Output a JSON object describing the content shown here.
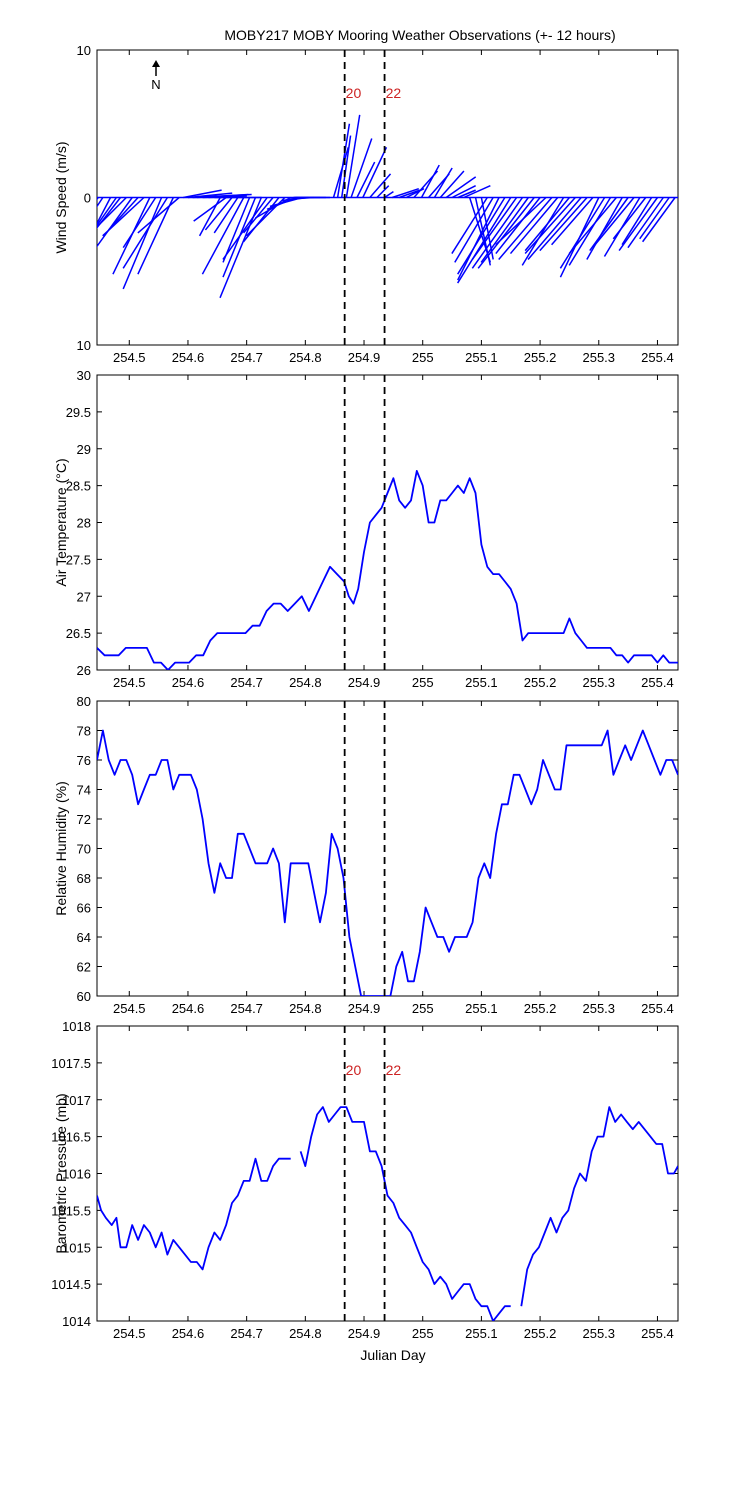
{
  "title": "MOBY217 MOBY Mooring Weather Observations (+- 12 hours)",
  "xlabel": "Julian Day",
  "north_label": "N",
  "x_ticks": [
    "254.5",
    "254.6",
    "254.7",
    "254.8",
    "254.9",
    "255",
    "255.1",
    "255.2",
    "255.3",
    "255.4"
  ],
  "colors": {
    "series": "#0000ff",
    "marker_text": "#cc2222",
    "axis": "#000000"
  },
  "markers": {
    "values": [
      254.867,
      254.935
    ],
    "labels": [
      "20",
      "22"
    ]
  },
  "chart_data": [
    {
      "type": "line",
      "variant": "wind-stick",
      "ylabel": "Wind Speed (m/s)",
      "y_ticks": [
        "10",
        "0",
        "10"
      ],
      "xlim": [
        254.445,
        255.435
      ],
      "ylim": [
        -10,
        10
      ],
      "marker_labels_shown": true,
      "x": [
        254.447,
        254.455,
        254.468,
        254.478,
        254.485,
        254.495,
        254.505,
        254.515,
        254.525,
        254.535,
        254.545,
        254.555,
        254.565,
        254.575,
        254.585,
        254.592,
        254.6,
        254.608,
        254.615,
        254.625,
        254.635,
        254.645,
        254.655,
        254.665,
        254.675,
        254.685,
        254.695,
        254.705,
        254.715,
        254.725,
        254.735,
        254.745,
        254.755,
        254.765,
        254.775,
        254.785,
        254.795,
        254.805,
        254.815,
        254.825,
        254.835,
        254.842,
        254.848,
        254.855,
        254.862,
        254.87,
        254.878,
        254.888,
        254.898,
        254.91,
        254.922,
        254.935,
        254.948,
        254.96,
        254.972,
        254.985,
        254.998,
        255.01,
        255.02,
        255.03,
        255.04,
        255.05,
        255.06,
        255.07,
        255.08,
        255.09,
        255.1,
        255.11,
        255.12,
        255.13,
        255.14,
        255.15,
        255.16,
        255.17,
        255.18,
        255.19,
        255.2,
        255.21,
        255.22,
        255.23,
        255.24,
        255.25,
        255.26,
        255.27,
        255.28,
        255.29,
        255.3,
        255.31,
        255.32,
        255.33,
        255.34,
        255.35,
        255.36,
        255.37,
        255.38,
        255.39,
        255.4,
        255.41,
        255.42,
        255.43
      ],
      "u": [
        2.3,
        2.0,
        2.5,
        3.2,
        2.8,
        2.4,
        2.6,
        2.0,
        2.8,
        2.5,
        2.2,
        2.6,
        3.0,
        2.4,
        2.8,
        -2.6,
        -3.0,
        -4.0,
        -3.5,
        -2.8,
        -2.6,
        -3.2,
        1.4,
        2.2,
        1.8,
        1.6,
        2.8,
        1.8,
        2.2,
        2.8,
        3.0,
        2.0,
        2.4,
        2.6,
        2.4,
        2.0,
        2.2,
        1.8,
        1.6,
        1.8,
        2.0,
        2.4,
        -1.0,
        -0.8,
        -0.6,
        -0.9,
        -1.4,
        -1.2,
        -1.6,
        -1.4,
        -0.8,
        -0.6,
        -1.8,
        -1.4,
        -1.2,
        -1.6,
        -1.2,
        -1.4,
        -1.2,
        -1.6,
        -2.0,
        -1.6,
        -1.2,
        -1.8,
        -1.4,
        -1.0,
        -0.8,
        2.4,
        2.6,
        2.8,
        3.2,
        3.6,
        3.0,
        3.4,
        3.2,
        3.8,
        3.0,
        3.4,
        3.6,
        3.2,
        2.8,
        3.0,
        3.4,
        3.6,
        3.2,
        2.8,
        2.6,
        3.0,
        2.8,
        3.2,
        2.4,
        2.6,
        2.8,
        2.4,
        2.2,
        2.0,
        2.6,
        2.4,
        2.0,
        2.2
      ],
      "v": [
        -3.4,
        -3.0,
        -4.8,
        -4.6,
        -3.6,
        -2.4,
        -3.6,
        -2.2,
        -2.6,
        -5.2,
        -3.4,
        -6.2,
        -4.8,
        -5.2,
        -2.4,
        0.5,
        0.3,
        0.2,
        0.2,
        0.1,
        0.1,
        0.0,
        -2.6,
        -1.6,
        -2.2,
        -2.4,
        -5.2,
        -4.4,
        -5.4,
        -6.8,
        -4.2,
        -2.4,
        -3.0,
        -2.6,
        -1.4,
        -0.8,
        -0.6,
        -0.2,
        -0.1,
        0.0,
        0.0,
        0.0,
        3.4,
        5.0,
        4.2,
        5.6,
        4.0,
        2.4,
        3.4,
        1.6,
        0.8,
        0.4,
        0.6,
        0.5,
        0.6,
        1.8,
        2.2,
        1.6,
        2.0,
        1.8,
        1.4,
        0.8,
        0.5,
        0.8,
        -4.4,
        -4.6,
        -4.2,
        -3.8,
        -4.4,
        -5.6,
        -5.2,
        -5.8,
        -4.2,
        -4.8,
        -4.4,
        -4.8,
        -3.8,
        -3.2,
        -4.2,
        -3.8,
        -4.6,
        -3.6,
        -3.8,
        -4.2,
        -3.6,
        -3.2,
        -5.4,
        -4.8,
        -4.6,
        -3.8,
        -4.2,
        -3.6,
        -3.4,
        -4.0,
        -2.8,
        -3.2,
        -3.6,
        -3.4,
        -2.8,
        -3.0
      ]
    },
    {
      "type": "line",
      "ylabel": "Air Temperature (°C)",
      "y_ticks": [
        "26",
        "26.5",
        "27",
        "27.5",
        "28",
        "28.5",
        "29",
        "29.5",
        "30"
      ],
      "xlim": [
        254.445,
        255.435
      ],
      "ylim": [
        26,
        30
      ],
      "marker_labels_shown": false,
      "x": [
        254.445,
        254.458,
        254.47,
        254.482,
        254.494,
        254.506,
        254.518,
        254.53,
        254.542,
        254.554,
        254.566,
        254.578,
        254.59,
        254.602,
        254.614,
        254.626,
        254.638,
        254.65,
        254.662,
        254.674,
        254.686,
        254.698,
        254.71,
        254.722,
        254.734,
        254.746,
        254.758,
        254.77,
        254.782,
        254.794,
        254.806,
        254.818,
        254.83,
        254.842,
        254.854,
        254.866,
        254.874,
        254.882,
        254.89,
        254.9,
        254.91,
        254.92,
        254.93,
        254.94,
        254.95,
        254.96,
        254.97,
        254.98,
        254.99,
        255.0,
        255.01,
        255.02,
        255.03,
        255.04,
        255.05,
        255.06,
        255.07,
        255.08,
        255.09,
        255.1,
        255.11,
        255.12,
        255.13,
        255.14,
        255.15,
        255.16,
        255.17,
        255.18,
        255.19,
        255.2,
        255.21,
        255.22,
        255.23,
        255.24,
        255.25,
        255.26,
        255.27,
        255.28,
        255.29,
        255.3,
        255.31,
        255.32,
        255.33,
        255.34,
        255.35,
        255.36,
        255.37,
        255.38,
        255.39,
        255.4,
        255.41,
        255.42,
        255.435
      ],
      "y": [
        26.3,
        26.2,
        26.2,
        26.2,
        26.3,
        26.3,
        26.3,
        26.3,
        26.1,
        26.1,
        26.0,
        26.1,
        26.1,
        26.1,
        26.2,
        26.2,
        26.4,
        26.5,
        26.5,
        26.5,
        26.5,
        26.5,
        26.6,
        26.6,
        26.8,
        26.9,
        26.9,
        26.8,
        26.9,
        27.0,
        26.8,
        27.0,
        27.2,
        27.4,
        27.3,
        27.2,
        27.0,
        26.9,
        27.1,
        27.6,
        28.0,
        28.1,
        28.2,
        28.4,
        28.6,
        28.3,
        28.2,
        28.3,
        28.7,
        28.5,
        28.0,
        28.0,
        28.3,
        28.3,
        28.4,
        28.5,
        28.4,
        28.6,
        28.4,
        27.7,
        27.4,
        27.3,
        27.3,
        27.2,
        27.1,
        26.9,
        26.4,
        26.5,
        26.5,
        26.5,
        26.5,
        26.5,
        26.5,
        26.5,
        26.7,
        26.5,
        26.4,
        26.3,
        26.3,
        26.3,
        26.3,
        26.3,
        26.2,
        26.2,
        26.1,
        26.2,
        26.2,
        26.2,
        26.2,
        26.1,
        26.2,
        26.1,
        26.1
      ]
    },
    {
      "type": "line",
      "ylabel": "Relative Humidity (%)",
      "y_ticks": [
        "60",
        "62",
        "64",
        "66",
        "68",
        "70",
        "72",
        "74",
        "76",
        "78",
        "80"
      ],
      "xlim": [
        254.445,
        255.435
      ],
      "ylim": [
        60,
        80
      ],
      "marker_labels_shown": false,
      "x": [
        254.445,
        254.455,
        254.465,
        254.475,
        254.485,
        254.495,
        254.505,
        254.515,
        254.525,
        254.535,
        254.545,
        254.555,
        254.565,
        254.575,
        254.585,
        254.595,
        254.605,
        254.615,
        254.625,
        254.635,
        254.645,
        254.655,
        254.665,
        254.675,
        254.685,
        254.695,
        254.705,
        254.715,
        254.725,
        254.735,
        254.745,
        254.755,
        254.765,
        254.775,
        254.785,
        254.795,
        254.805,
        254.815,
        254.825,
        254.835,
        254.845,
        254.855,
        254.865,
        254.875,
        254.885,
        254.895,
        254.905,
        254.915,
        254.925,
        254.935,
        254.945,
        254.955,
        254.965,
        254.975,
        254.985,
        254.995,
        255.005,
        255.015,
        255.025,
        255.035,
        255.045,
        255.055,
        255.065,
        255.075,
        255.085,
        255.095,
        255.105,
        255.115,
        255.125,
        255.135,
        255.145,
        255.155,
        255.165,
        255.175,
        255.185,
        255.195,
        255.205,
        255.215,
        255.225,
        255.235,
        255.245,
        255.255,
        255.265,
        255.275,
        255.285,
        255.295,
        255.305,
        255.315,
        255.325,
        255.335,
        255.345,
        255.355,
        255.365,
        255.375,
        255.385,
        255.395,
        255.405,
        255.415,
        255.425,
        255.435
      ],
      "y": [
        76,
        78,
        76,
        75,
        76,
        76,
        75,
        73,
        74,
        75,
        75,
        76,
        76,
        74,
        75,
        75,
        75,
        74,
        72,
        69,
        67,
        69,
        68,
        68,
        71,
        71,
        70,
        69,
        69,
        69,
        70,
        69,
        65,
        69,
        69,
        69,
        69,
        67,
        65,
        67,
        71,
        70,
        68,
        64,
        62,
        60,
        60,
        60,
        60,
        60,
        60,
        62,
        63,
        61,
        61,
        63,
        66,
        65,
        64,
        64,
        63,
        64,
        64,
        64,
        65,
        68,
        69,
        68,
        71,
        73,
        73,
        75,
        75,
        74,
        73,
        74,
        76,
        75,
        74,
        74,
        77,
        77,
        77,
        77,
        77,
        77,
        77,
        78,
        75,
        76,
        77,
        76,
        77,
        78,
        77,
        76,
        75,
        76,
        76,
        75
      ],
      "note": "Values at 60 between 254.905 and 254.935 fall below the axis floor; the line leaves the frame there."
    },
    {
      "type": "line",
      "ylabel": "Barometric Pressure (mb)",
      "y_ticks": [
        "1014",
        "1014.5",
        "1015",
        "1015.5",
        "1016",
        "1016.5",
        "1017",
        "1017.5",
        "1018"
      ],
      "xlim": [
        254.445,
        255.435
      ],
      "ylim": [
        1014,
        1018
      ],
      "marker_labels_shown": true,
      "segments": [
        {
          "x": [
            254.445,
            254.452,
            254.46,
            254.47,
            254.478,
            254.485,
            254.495,
            254.505,
            254.515,
            254.525,
            254.535,
            254.545,
            254.555,
            254.565,
            254.575,
            254.585,
            254.595,
            254.605,
            254.615,
            254.625,
            254.635,
            254.645,
            254.655,
            254.665,
            254.675,
            254.685,
            254.695,
            254.705,
            254.715,
            254.725,
            254.735,
            254.745,
            254.755,
            254.765,
            254.775
          ],
          "y": [
            1015.7,
            1015.5,
            1015.4,
            1015.3,
            1015.4,
            1015.0,
            1015.0,
            1015.3,
            1015.1,
            1015.3,
            1015.2,
            1015.0,
            1015.2,
            1014.9,
            1015.1,
            1015.0,
            1014.9,
            1014.8,
            1014.8,
            1014.7,
            1015.0,
            1015.2,
            1015.1,
            1015.3,
            1015.6,
            1015.7,
            1015.9,
            1015.9,
            1016.2,
            1015.9,
            1015.9,
            1016.1,
            1016.2,
            1016.2,
            1016.2
          ]
        },
        {
          "x": [
            254.792,
            254.8,
            254.81,
            254.82,
            254.83,
            254.84,
            254.85,
            254.86,
            254.87,
            254.88,
            254.89,
            254.9,
            254.91,
            254.92,
            254.93,
            254.94,
            254.95,
            254.96,
            254.97,
            254.98,
            254.99,
            255.0,
            255.01,
            255.02,
            255.03,
            255.04,
            255.05,
            255.06,
            255.07,
            255.08,
            255.09,
            255.1,
            255.11,
            255.12,
            255.13,
            255.14,
            255.15
          ],
          "y": [
            1016.3,
            1016.1,
            1016.5,
            1016.8,
            1016.9,
            1016.7,
            1016.8,
            1016.9,
            1016.9,
            1016.7,
            1016.7,
            1016.7,
            1016.3,
            1016.3,
            1016.1,
            1015.7,
            1015.6,
            1015.4,
            1015.3,
            1015.2,
            1015.0,
            1014.8,
            1014.7,
            1014.5,
            1014.6,
            1014.5,
            1014.3,
            1014.4,
            1014.5,
            1014.5,
            1014.3,
            1014.2,
            1014.2,
            1014.0,
            1014.1,
            1014.2,
            1014.2
          ]
        },
        {
          "x": [
            255.168,
            255.178,
            255.188,
            255.198,
            255.208,
            255.218,
            255.228,
            255.238,
            255.248,
            255.258,
            255.268,
            255.278,
            255.288,
            255.298,
            255.308,
            255.318,
            255.328,
            255.338,
            255.348,
            255.358,
            255.368,
            255.378,
            255.388,
            255.398,
            255.408,
            255.418,
            255.428,
            255.435
          ],
          "y": [
            1014.2,
            1014.7,
            1014.9,
            1015.0,
            1015.2,
            1015.4,
            1015.2,
            1015.4,
            1015.5,
            1015.8,
            1016.0,
            1015.9,
            1016.3,
            1016.5,
            1016.5,
            1016.9,
            1016.7,
            1016.8,
            1016.7,
            1016.6,
            1016.7,
            1016.6,
            1016.5,
            1016.4,
            1016.4,
            1016.0,
            1016.0,
            1016.1
          ]
        }
      ]
    }
  ]
}
